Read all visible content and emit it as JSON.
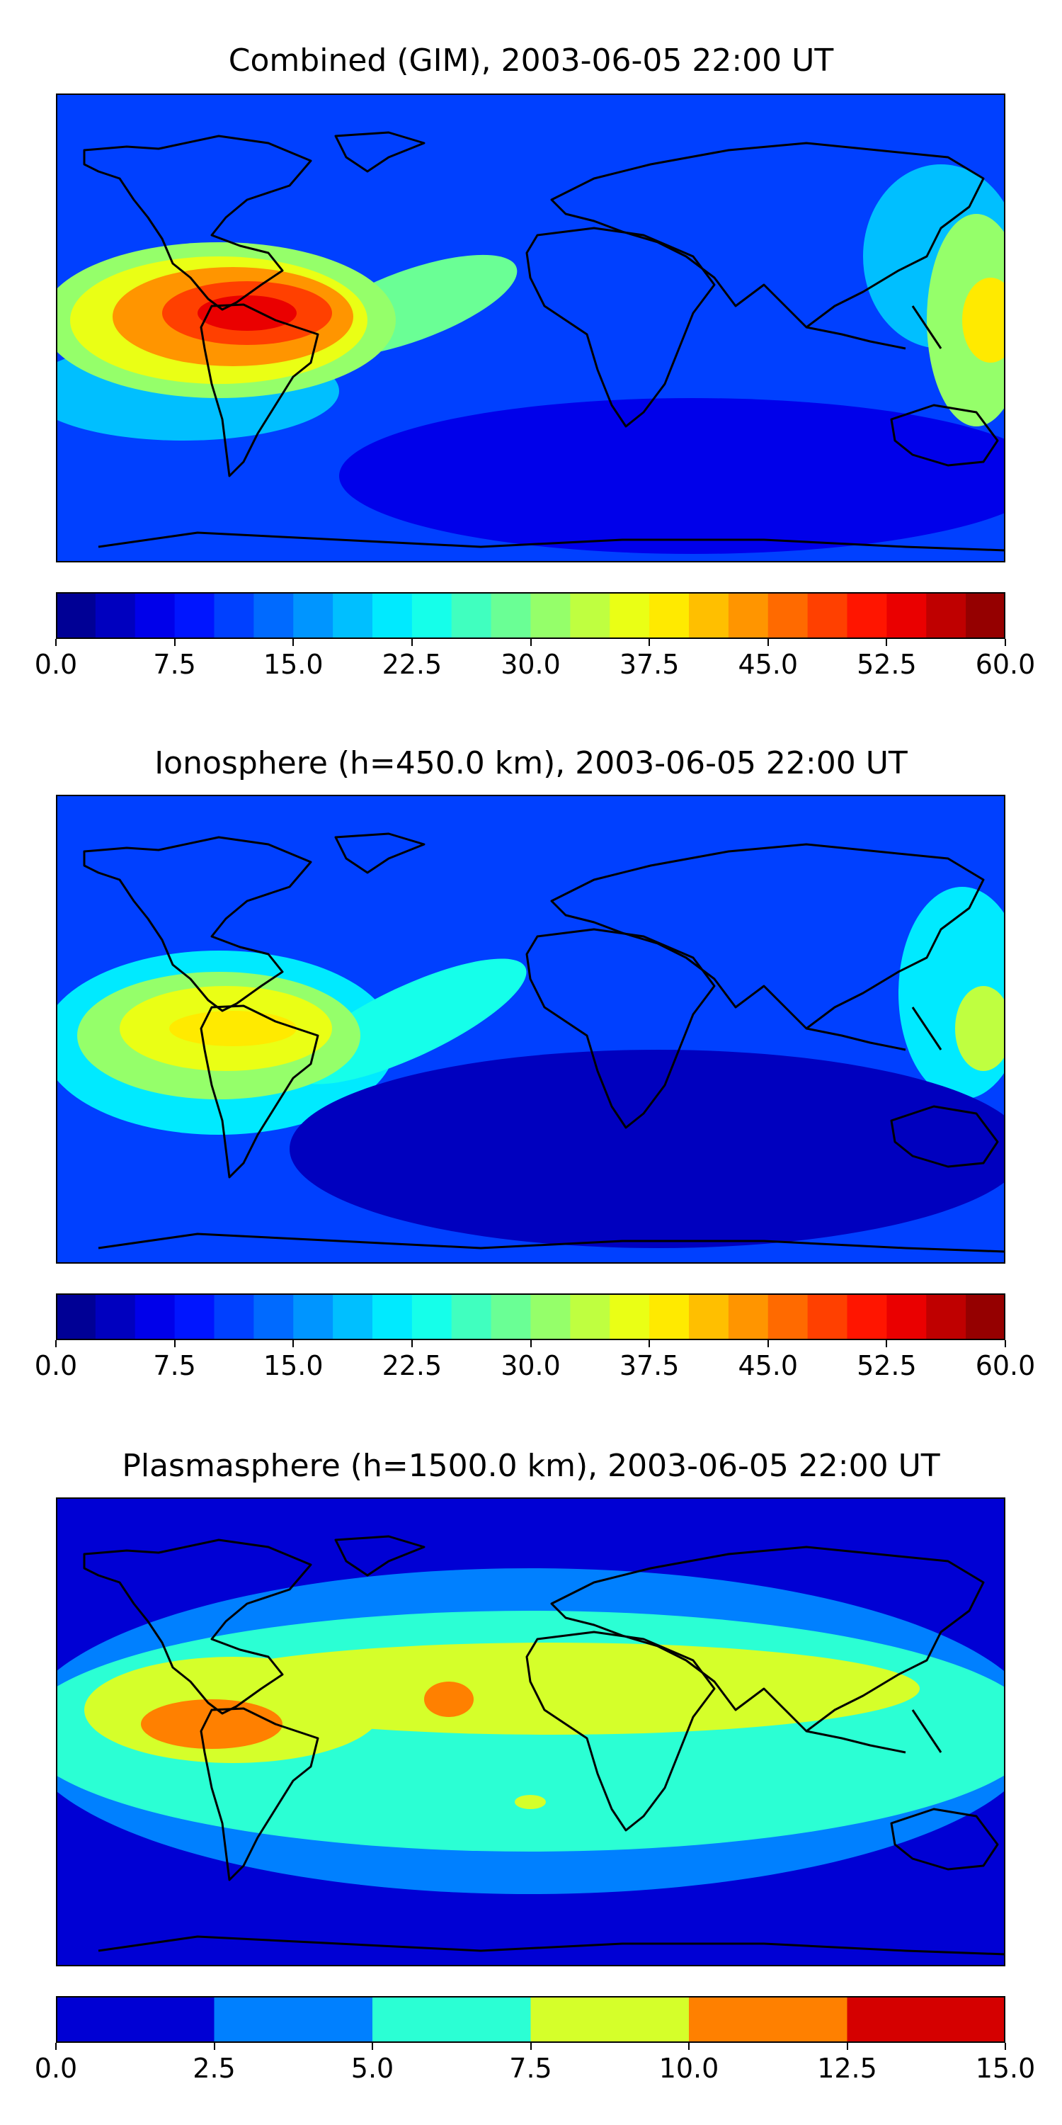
{
  "chart_data": [
    {
      "type": "heatmap",
      "title": "Combined (GIM), 2003-06-05 22:00 UT",
      "map": "global map of coastlines",
      "colormap": "jet",
      "colorbar": {
        "range": [
          0,
          60
        ],
        "levels": 24,
        "ticks": [
          "0.0",
          "7.5",
          "15.0",
          "22.5",
          "30.0",
          "37.5",
          "45.0",
          "52.5",
          "60.0"
        ],
        "tick_values": [
          0,
          7.5,
          15,
          22.5,
          30,
          37.5,
          45,
          52.5,
          60
        ]
      },
      "features": [
        {
          "region": "eastern Pacific near Central America",
          "value": 52.5
        },
        {
          "region": "tropical Atlantic east of South America",
          "value": 30
        },
        {
          "region": "western Pacific near Indonesia",
          "value": 37.5
        },
        {
          "region": "Africa and Indian Ocean",
          "value": 12
        },
        {
          "region": "Antarctica and southern oceans",
          "value": 5
        },
        {
          "region": "northern high latitudes",
          "value": 12
        }
      ]
    },
    {
      "type": "heatmap",
      "title": "Ionosphere  (h=450.0 km), 2003-06-05 22:00 UT",
      "map": "global map of coastlines",
      "colormap": "jet",
      "colorbar": {
        "range": [
          0,
          60
        ],
        "levels": 24,
        "ticks": [
          "0.0",
          "7.5",
          "15.0",
          "22.5",
          "30.0",
          "37.5",
          "45.0",
          "52.5",
          "60.0"
        ],
        "tick_values": [
          0,
          7.5,
          15,
          22.5,
          30,
          37.5,
          45,
          52.5,
          60
        ]
      },
      "features": [
        {
          "region": "eastern Pacific near Central America",
          "value": 40
        },
        {
          "region": "tropical Atlantic",
          "value": 25
        },
        {
          "region": "western Pacific",
          "value": 35
        },
        {
          "region": "Africa and Indian Ocean",
          "value": 7
        },
        {
          "region": "southern oceans",
          "value": 4
        }
      ]
    },
    {
      "type": "heatmap",
      "title": "Plasmasphere (h=1500.0 km), 2003-06-05 22:00 UT",
      "map": "global map of coastlines",
      "colormap": "jet",
      "colorbar": {
        "range": [
          0,
          15
        ],
        "levels": 6,
        "ticks": [
          "0.0",
          "2.5",
          "5.0",
          "7.5",
          "10.0",
          "12.5",
          "15.0"
        ],
        "tick_values": [
          0,
          2.5,
          5,
          7.5,
          10,
          12.5,
          15
        ]
      },
      "features": [
        {
          "region": "eastern Pacific",
          "value": 11
        },
        {
          "region": "West Africa",
          "value": 11
        },
        {
          "region": "northern tropical band",
          "value": 8.5
        },
        {
          "region": "southern tropical band",
          "value": 6
        },
        {
          "region": "mid latitudes",
          "value": 3.5
        },
        {
          "region": "polar regions",
          "value": 1
        }
      ]
    }
  ]
}
